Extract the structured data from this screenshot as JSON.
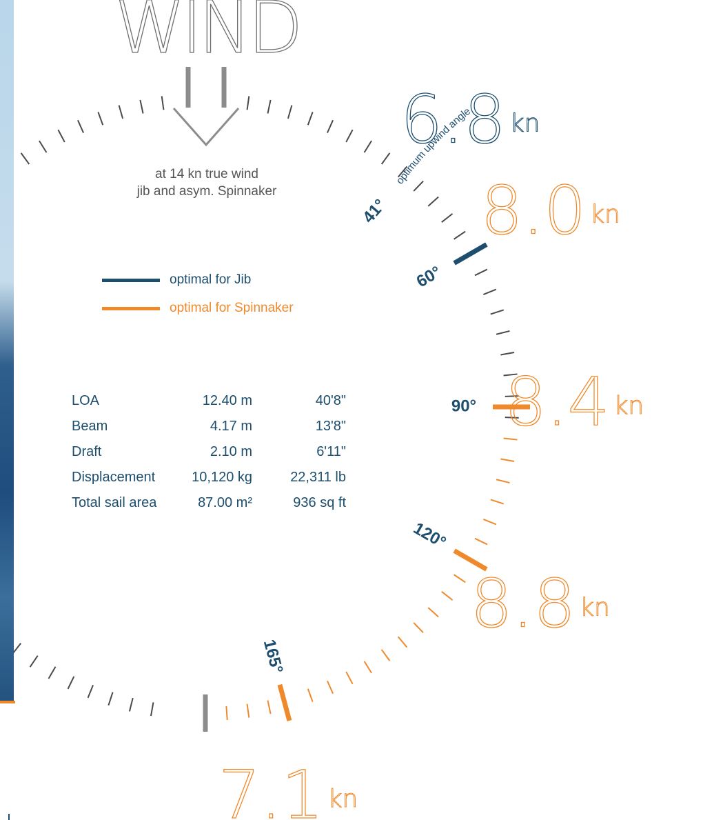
{
  "title": "WIND",
  "subtitle": {
    "line1": "at 14 kn true wind",
    "line2": "jib and asym. Spinnaker"
  },
  "colors": {
    "jib": "#1d4e6e",
    "spinnaker": "#ef8a2c",
    "neutral": "#8c8c8c",
    "tick": "#4a4a4a",
    "sea_accent": "#ef8a2c"
  },
  "legend": [
    {
      "label": "optimal for Jib",
      "color": "#1d4e6e"
    },
    {
      "label": "optimal for Spinnaker",
      "color": "#ef8a2c"
    }
  ],
  "specs": [
    {
      "name": "LOA",
      "metric": "12.40 m",
      "imperial": "40'8\""
    },
    {
      "name": "Beam",
      "metric": "4.17 m",
      "imperial": "13'8\""
    },
    {
      "name": "Draft",
      "metric": "2.10 m",
      "imperial": "6'11\""
    },
    {
      "name": "Displacement",
      "metric": "10,120 kg",
      "imperial": "22,311 lb"
    },
    {
      "name": "Total sail area",
      "metric": "87.00 m²",
      "imperial": "936 sq ft"
    }
  ],
  "upwind_label": "optimum upwind angle",
  "angle_labels": [
    {
      "angle": 41,
      "text": "41°",
      "color": "#1d4e6e"
    },
    {
      "angle": 60,
      "text": "60°",
      "color": "#1d4e6e"
    },
    {
      "angle": 90,
      "text": "90°",
      "color": "#1d4e6e"
    },
    {
      "angle": 120,
      "text": "120°",
      "color": "#1d4e6e"
    },
    {
      "angle": 165,
      "text": "165°",
      "color": "#1d4e6e"
    }
  ],
  "speeds": [
    {
      "angle": 41,
      "value": "6.8",
      "unit": "kn",
      "color": "#1d4e6e"
    },
    {
      "angle": 60,
      "value": "8.0",
      "unit": "kn",
      "color": "#ef8a2c"
    },
    {
      "angle": 90,
      "value": "8.4",
      "unit": "kn",
      "color": "#ef8a2c"
    },
    {
      "angle": 120,
      "value": "8.8",
      "unit": "kn",
      "color": "#ef8a2c"
    },
    {
      "angle": 165,
      "value": "7.1",
      "unit": "kn",
      "color": "#ef8a2c"
    }
  ],
  "highlights": [
    {
      "angle": 60,
      "color": "#1d4e6e"
    },
    {
      "angle": 90,
      "color": "#ef8a2c"
    },
    {
      "angle": 120,
      "color": "#ef8a2c"
    },
    {
      "angle": 165,
      "color": "#ef8a2c"
    },
    {
      "angle": 180,
      "color": "#8c8c8c"
    }
  ],
  "spinnaker_range": [
    96,
    178
  ]
}
